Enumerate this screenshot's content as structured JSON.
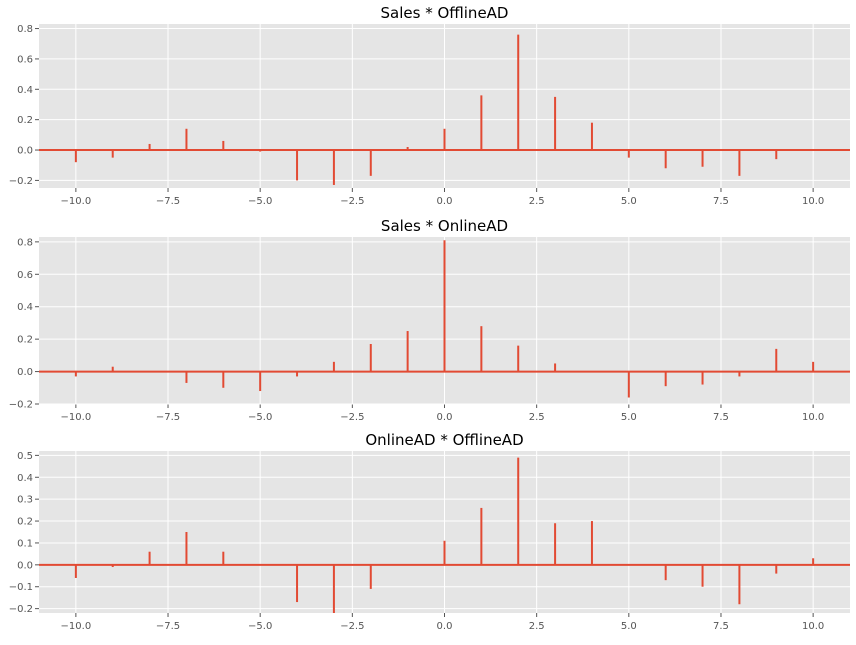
{
  "chart_data": [
    {
      "type": "bar",
      "title": "Sales * OfflineAD",
      "xlim": [
        -11,
        11
      ],
      "ylim": [
        -0.25,
        0.83
      ],
      "xticks": [
        -10.0,
        -7.5,
        -5.0,
        -2.5,
        0.0,
        2.5,
        5.0,
        7.5,
        10.0
      ],
      "xtick_labels": [
        "−10.0",
        "−7.5",
        "−5.0",
        "−2.5",
        "0.0",
        "2.5",
        "5.0",
        "7.5",
        "10.0"
      ],
      "yticks": [
        -0.2,
        0.0,
        0.2,
        0.4,
        0.6,
        0.8
      ],
      "ytick_labels": [
        "−0.2",
        "0.0",
        "0.2",
        "0.4",
        "0.6",
        "0.8"
      ],
      "x": [
        -10,
        -9,
        -8,
        -7,
        -6,
        -5,
        -4,
        -3,
        -2,
        -1,
        0,
        1,
        2,
        3,
        4,
        5,
        6,
        7,
        8,
        9,
        10
      ],
      "values": [
        -0.08,
        -0.05,
        0.04,
        0.14,
        0.06,
        -0.01,
        -0.2,
        -0.23,
        -0.17,
        0.02,
        0.14,
        0.36,
        0.76,
        0.35,
        0.18,
        -0.05,
        -0.12,
        -0.11,
        -0.17,
        -0.06,
        0.0
      ]
    },
    {
      "type": "bar",
      "title": "Sales * OnlineAD",
      "xlim": [
        -11,
        11
      ],
      "ylim": [
        -0.2,
        0.83
      ],
      "xticks": [
        -10.0,
        -7.5,
        -5.0,
        -2.5,
        0.0,
        2.5,
        5.0,
        7.5,
        10.0
      ],
      "xtick_labels": [
        "−10.0",
        "−7.5",
        "−5.0",
        "−2.5",
        "0.0",
        "2.5",
        "5.0",
        "7.5",
        "10.0"
      ],
      "yticks": [
        -0.2,
        0.0,
        0.2,
        0.4,
        0.6,
        0.8
      ],
      "ytick_labels": [
        "−0.2",
        "0.0",
        "0.2",
        "0.4",
        "0.6",
        "0.8"
      ],
      "x": [
        -10,
        -9,
        -8,
        -7,
        -6,
        -5,
        -4,
        -3,
        -2,
        -1,
        0,
        1,
        2,
        3,
        4,
        5,
        6,
        7,
        8,
        9,
        10
      ],
      "values": [
        -0.03,
        0.03,
        0.0,
        -0.07,
        -0.1,
        -0.12,
        -0.03,
        0.06,
        0.17,
        0.25,
        0.81,
        0.28,
        0.16,
        0.05,
        0.0,
        -0.16,
        -0.09,
        -0.08,
        -0.03,
        0.14,
        0.06
      ]
    },
    {
      "type": "bar",
      "title": "OnlineAD * OfflineAD",
      "xlim": [
        -11,
        11
      ],
      "ylim": [
        -0.22,
        0.52
      ],
      "xticks": [
        -10.0,
        -7.5,
        -5.0,
        -2.5,
        0.0,
        2.5,
        5.0,
        7.5,
        10.0
      ],
      "xtick_labels": [
        "−10.0",
        "−7.5",
        "−5.0",
        "−2.5",
        "0.0",
        "2.5",
        "5.0",
        "7.5",
        "10.0"
      ],
      "yticks": [
        -0.2,
        -0.1,
        0.0,
        0.1,
        0.2,
        0.3,
        0.4,
        0.5
      ],
      "ytick_labels": [
        "−0.2",
        "−0.1",
        "0.0",
        "0.1",
        "0.2",
        "0.3",
        "0.4",
        "0.5"
      ],
      "x": [
        -10,
        -9,
        -8,
        -7,
        -6,
        -5,
        -4,
        -3,
        -2,
        -1,
        0,
        1,
        2,
        3,
        4,
        5,
        6,
        7,
        8,
        9,
        10
      ],
      "values": [
        -0.06,
        -0.01,
        0.06,
        0.15,
        0.06,
        0.0,
        -0.17,
        -0.22,
        -0.11,
        0.0,
        0.11,
        0.26,
        0.49,
        0.19,
        0.2,
        0.0,
        -0.07,
        -0.1,
        -0.18,
        -0.04,
        0.03
      ]
    }
  ],
  "colors": {
    "axes_bg": "#e5e5e5",
    "grid": "#ffffff",
    "series": "#e24a33"
  }
}
